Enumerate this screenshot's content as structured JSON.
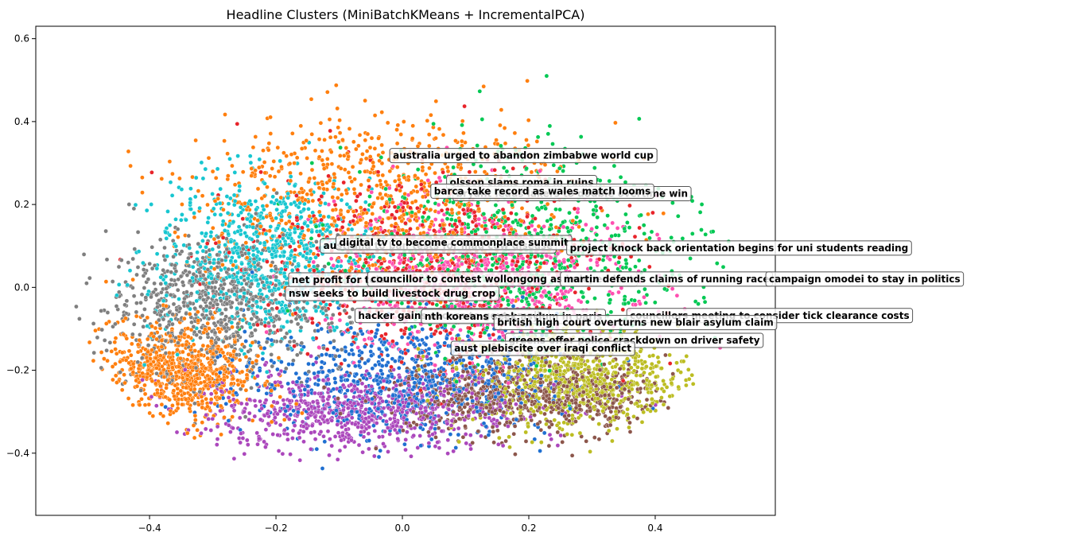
{
  "chart_data": {
    "type": "scatter",
    "title": "Headline Clusters (MiniBatchKMeans + IncrementalPCA)",
    "xlabel": "",
    "ylabel": "",
    "xlim": [
      -0.58,
      0.59
    ],
    "ylim": [
      -0.55,
      0.63
    ],
    "xticks": [
      -0.4,
      -0.2,
      0.0,
      0.2,
      0.4
    ],
    "xtick_labels": [
      "−0.4",
      "−0.2",
      "0.0",
      "0.2",
      "0.4"
    ],
    "yticks": [
      -0.4,
      -0.2,
      0.0,
      0.2,
      0.4,
      0.6
    ],
    "ytick_labels": [
      "−0.4",
      "−0.2",
      "0.0",
      "0.2",
      "0.4",
      "0.6"
    ],
    "grid": false,
    "legend": "none",
    "clusters": [
      {
        "color": "#ff7f0e",
        "center": [
          -0.05,
          0.22
        ],
        "spread": [
          0.26,
          0.17
        ]
      },
      {
        "color": "#00c853",
        "center": [
          0.18,
          0.08
        ],
        "spread": [
          0.22,
          0.2
        ]
      },
      {
        "color": "#17c6d0",
        "center": [
          -0.22,
          0.07
        ],
        "spread": [
          0.14,
          0.16
        ]
      },
      {
        "color": "#ab47bc",
        "center": [
          -0.07,
          -0.3
        ],
        "spread": [
          0.22,
          0.08
        ]
      },
      {
        "color": "#ff4fb0",
        "center": [
          0.12,
          0.02
        ],
        "spread": [
          0.2,
          0.16
        ]
      },
      {
        "color": "#bcbd22",
        "center": [
          0.28,
          -0.22
        ],
        "spread": [
          0.14,
          0.1
        ]
      },
      {
        "color": "#1f6fd1",
        "center": [
          0.0,
          -0.22
        ],
        "spread": [
          0.2,
          0.12
        ]
      },
      {
        "color": "#e8242a",
        "center": [
          0.05,
          0.05
        ],
        "spread": [
          0.22,
          0.18
        ]
      },
      {
        "color": "#8c564b",
        "center": [
          0.2,
          -0.26
        ],
        "spread": [
          0.18,
          0.08
        ]
      },
      {
        "color": "#7f7f7f",
        "center": [
          -0.3,
          -0.05
        ],
        "spread": [
          0.14,
          0.14
        ]
      },
      {
        "color": "#ff7f0e",
        "center": [
          -0.35,
          -0.2
        ],
        "spread": [
          0.1,
          0.1
        ]
      }
    ],
    "annotations": [
      {
        "text": "australia urged to abandon zimbabwe world cup",
        "x": -0.015,
        "y": 0.318
      },
      {
        "text": "olsson slams roma in ruins",
        "x": 0.075,
        "y": 0.253
      },
      {
        "text": "bryant leads lakers to double overtime win",
        "x": 0.085,
        "y": 0.226
      },
      {
        "text": "barca take record as wales match looms",
        "x": 0.05,
        "y": 0.232
      },
      {
        "text": "australia to ban tests for mad cow disease",
        "x": -0.125,
        "y": 0.1
      },
      {
        "text": "digital tv to become commonplace summit",
        "x": -0.1,
        "y": 0.108
      },
      {
        "text": "project knock back orientation begins for uni students reading",
        "x": 0.265,
        "y": 0.095
      },
      {
        "text": "net profit for telstra",
        "x": -0.175,
        "y": 0.018
      },
      {
        "text": "councillor to contest wollongong as independent",
        "x": -0.05,
        "y": 0.02
      },
      {
        "text": "martin defends claims of running race",
        "x": 0.255,
        "y": 0.02
      },
      {
        "text": "campaign omodei to stay in politics",
        "x": 0.58,
        "y": 0.02
      },
      {
        "text": "nsw seeks to build livestock drug crop",
        "x": -0.18,
        "y": -0.015
      },
      {
        "text": "hacker gains access to govt emails",
        "x": -0.07,
        "y": -0.068
      },
      {
        "text": "councillors meeting to consider tick clearance costs",
        "x": 0.36,
        "y": -0.068
      },
      {
        "text": "nth koreans seek asylum in paris",
        "x": 0.035,
        "y": -0.07
      },
      {
        "text": "british high court overturns new blair asylum claim",
        "x": 0.15,
        "y": -0.085
      },
      {
        "text": "greens offer police crackdown on driver safety",
        "x": 0.168,
        "y": -0.128
      },
      {
        "text": "aust plebiscite over iraqi conflict",
        "x": 0.082,
        "y": -0.147
      }
    ]
  }
}
